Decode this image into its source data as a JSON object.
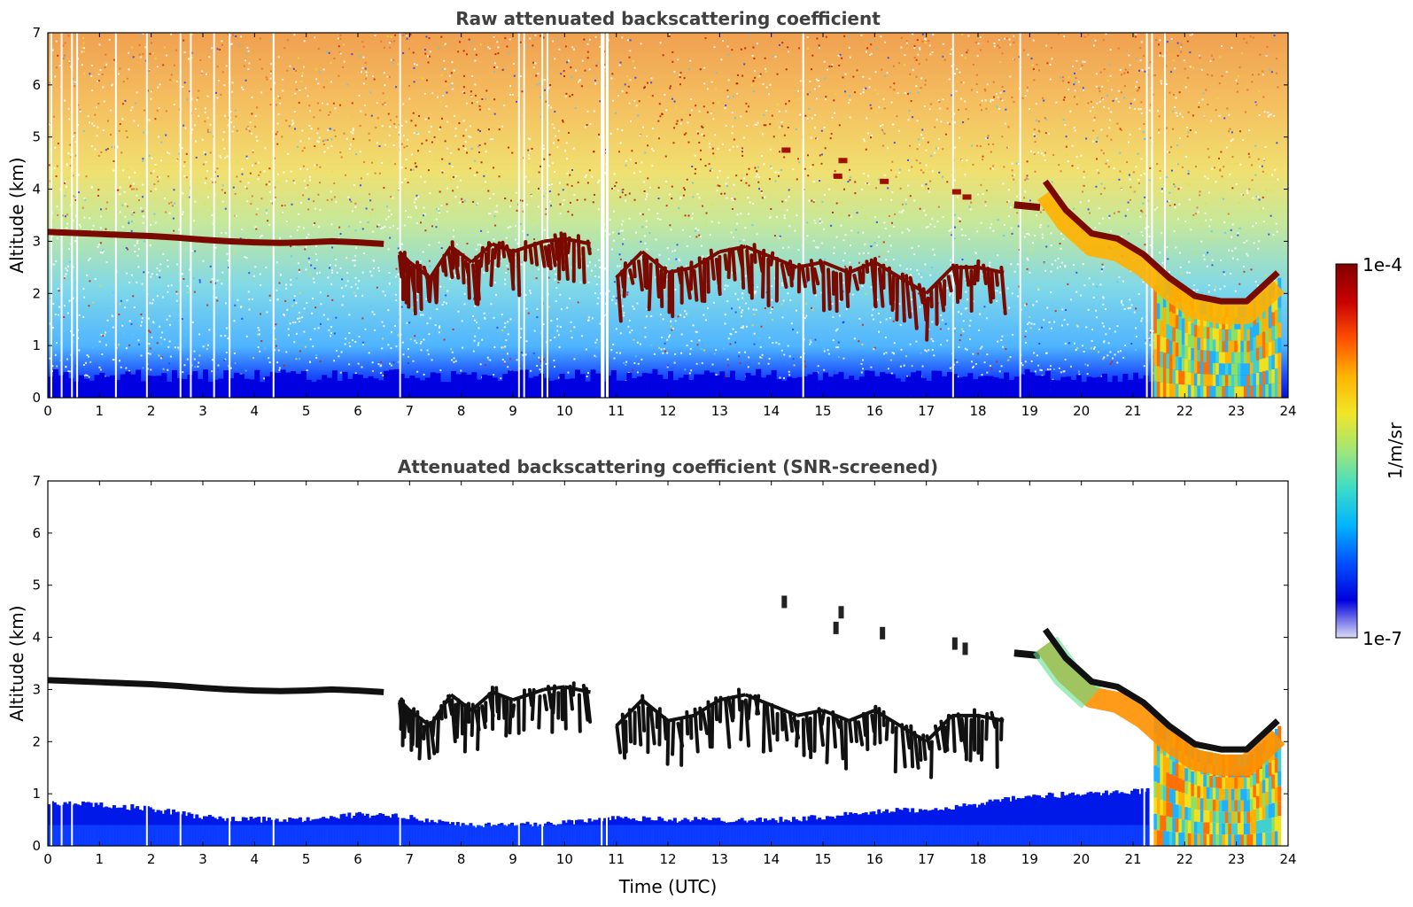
{
  "chart_data": [
    {
      "type": "heatmap",
      "title": "Raw attenuated backscattering coefficient",
      "xlabel": "",
      "ylabel": "Altitude (km)",
      "xlim": [
        0,
        24
      ],
      "ylim": [
        0,
        7
      ],
      "xticks": [
        "0",
        "1",
        "2",
        "3",
        "4",
        "5",
        "6",
        "7",
        "8",
        "9",
        "10",
        "11",
        "12",
        "13",
        "14",
        "15",
        "16",
        "17",
        "18",
        "19",
        "20",
        "21",
        "22",
        "23",
        "24"
      ],
      "yticks": [
        "0",
        "1",
        "2",
        "3",
        "4",
        "5",
        "6",
        "7"
      ],
      "x_unit": "hours UTC",
      "y_unit": "km",
      "features": {
        "cloud_layer_time": [
          0,
          0.5,
          1,
          1.5,
          2,
          2.5,
          3,
          3.5,
          4,
          4.5,
          5,
          5.5,
          6,
          6.5
        ],
        "cloud_layer_altitude": [
          3.18,
          3.16,
          3.14,
          3.12,
          3.1,
          3.07,
          3.03,
          3.0,
          2.98,
          2.97,
          2.98,
          3.0,
          2.98,
          2.95
        ],
        "broken_cloud_segments": [
          {
            "t": [
              6.8,
              7.0,
              7.4,
              7.8,
              8.2,
              8.6,
              9.0,
              9.6,
              10.0,
              10.5
            ],
            "z": [
              2.8,
              2.6,
              2.3,
              2.9,
              2.6,
              2.95,
              2.8,
              3.0,
              3.05,
              2.95
            ]
          },
          {
            "t": [
              11.0,
              11.5,
              12.0,
              12.5,
              13.0,
              13.5,
              14.0,
              14.5,
              15.0,
              15.5,
              16.0,
              16.5,
              17.0,
              17.5,
              18.0,
              18.5
            ],
            "z": [
              2.3,
              2.8,
              2.4,
              2.5,
              2.8,
              2.9,
              2.7,
              2.5,
              2.6,
              2.4,
              2.6,
              2.3,
              2.0,
              2.5,
              2.5,
              2.4
            ]
          }
        ],
        "high_cloud_segment": {
          "t": [
            18.7,
            19.2
          ],
          "z": [
            3.7,
            3.65
          ]
        },
        "descending_layer": {
          "t": [
            19.3,
            19.7,
            20.2,
            20.7,
            21.2,
            21.7,
            22.2,
            22.7,
            23.2,
            23.8
          ],
          "z": [
            4.15,
            3.6,
            3.15,
            3.05,
            2.75,
            2.3,
            1.95,
            1.85,
            1.85,
            2.4
          ]
        },
        "precipitation_region": {
          "t": [
            21.4,
            23.8
          ],
          "z": [
            0,
            1.8
          ]
        }
      }
    },
    {
      "type": "heatmap",
      "title": "Attenuated backscattering coefficient (SNR-screened)",
      "xlabel": "Time (UTC)",
      "ylabel": "Altitude (km)",
      "xlim": [
        0,
        24
      ],
      "ylim": [
        0,
        7
      ],
      "xticks": [
        "0",
        "1",
        "2",
        "3",
        "4",
        "5",
        "6",
        "7",
        "8",
        "9",
        "10",
        "11",
        "12",
        "13",
        "14",
        "15",
        "16",
        "17",
        "18",
        "19",
        "20",
        "21",
        "22",
        "23",
        "24"
      ],
      "yticks": [
        "0",
        "1",
        "2",
        "3",
        "4",
        "5",
        "6",
        "7"
      ],
      "x_unit": "hours UTC",
      "y_unit": "km",
      "features": {
        "boundary_layer_top_time": [
          0,
          1,
          2,
          3,
          4,
          5,
          6,
          7,
          8,
          9,
          10,
          11,
          12,
          13,
          14,
          15,
          16,
          17,
          18,
          19,
          20,
          21,
          21.3
        ],
        "boundary_layer_top_km": [
          0.82,
          0.8,
          0.7,
          0.55,
          0.5,
          0.5,
          0.6,
          0.55,
          0.4,
          0.4,
          0.45,
          0.55,
          0.5,
          0.5,
          0.5,
          0.55,
          0.65,
          0.7,
          0.8,
          0.95,
          1.0,
          1.05,
          1.05
        ]
      }
    }
  ],
  "colorbar": {
    "label": "1/m/sr",
    "max_label": "1e-4",
    "min_label": "1e-7",
    "scale": "log",
    "colormap": [
      "#dcdcf5",
      "#0000dc",
      "#0050ff",
      "#00b4ff",
      "#3cdcc8",
      "#a0e678",
      "#f0e628",
      "#ffb400",
      "#ff5000",
      "#c80000",
      "#800000"
    ]
  },
  "colors": {
    "cloud": "#7a0a00",
    "cloud_screened": "#111111",
    "background_blue": "#0000e6",
    "title_text": "#404040"
  }
}
